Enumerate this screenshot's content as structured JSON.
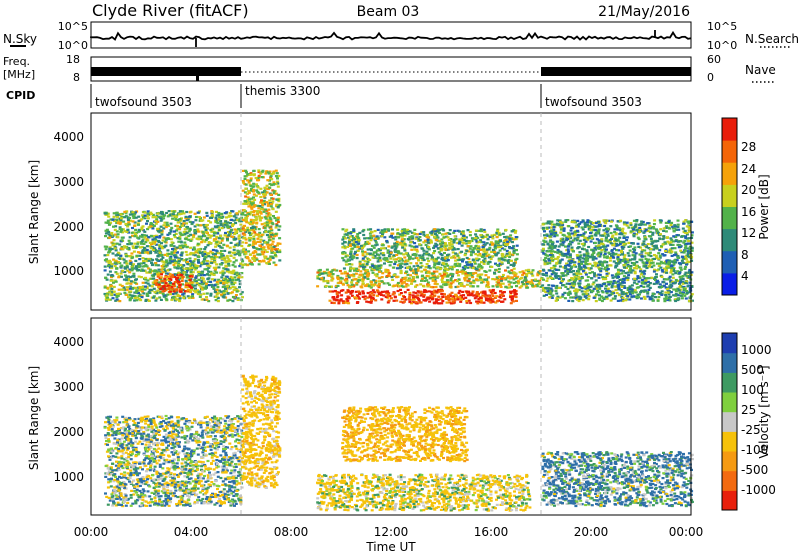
{
  "header": {
    "station": "Clyde River (fitACF)",
    "beam": "Beam 03",
    "date": "21/May/2016"
  },
  "strips": {
    "nsky_label": "N.Sky",
    "nsearch_label": "N.Search",
    "nsky_ticks": [
      "10^5",
      "10^0"
    ],
    "nsearch_ticks": [
      "10^5",
      "10^0"
    ],
    "freq_label_1": "Freq.",
    "freq_label_2": "[MHz]",
    "freq_ticks": [
      "18",
      "8"
    ],
    "nave_label": "Nave",
    "nave_ticks": [
      "60",
      "0"
    ],
    "cpid_label": "CPID",
    "cpid_modes": [
      {
        "name": "twofsound 3503",
        "start_h": 0,
        "end_h": 6
      },
      {
        "name": "themis 3300",
        "start_h": 6,
        "end_h": 18
      },
      {
        "name": "twofsound 3503",
        "start_h": 18,
        "end_h": 24
      }
    ]
  },
  "panels": {
    "ylabel": "Slant Range [km]",
    "xlabel": "Time UT",
    "yticks": [
      "1000",
      "2000",
      "3000",
      "4000"
    ],
    "xticks": [
      "00:00",
      "04:00",
      "08:00",
      "12:00",
      "16:00",
      "20:00",
      "00:00"
    ]
  },
  "colorbars": {
    "power": {
      "label": "Power [dB]",
      "ticks": [
        "4",
        "8",
        "12",
        "16",
        "20",
        "24",
        "28"
      ],
      "colors": [
        "#0a1ee6",
        "#1f5fb4",
        "#2e8a78",
        "#52b24a",
        "#c8d01e",
        "#f5a20a",
        "#f46508",
        "#e81d0a"
      ]
    },
    "velocity": {
      "label": "Velocity [m s⁻¹]",
      "ticks": [
        "1000",
        "500",
        "100",
        "25",
        "-25",
        "-100",
        "-500",
        "-1000"
      ],
      "colors": [
        "#1e3eb0",
        "#2e6fa8",
        "#3e9a62",
        "#7fcf3e",
        "#c8c8c8",
        "#f6c20a",
        "#f59a12",
        "#f36a10",
        "#e8200c"
      ]
    }
  },
  "chart_data": [
    {
      "type": "heatmap",
      "title": "Power",
      "xlabel": "Time UT",
      "ylabel": "Slant Range [km]",
      "xlim": [
        0,
        24
      ],
      "ylim": [
        180,
        4550
      ],
      "colorbar_label": "Power [dB]",
      "colorbar_range": [
        0,
        32
      ],
      "regions": [
        {
          "t0": 0.5,
          "t1": 6,
          "r0": 400,
          "r1": 2400,
          "value": 14
        },
        {
          "t0": 2.5,
          "t1": 4,
          "r0": 600,
          "r1": 1000,
          "value": 28
        },
        {
          "t0": 6,
          "t1": 7.5,
          "r0": 1200,
          "r1": 3300,
          "value": 18
        },
        {
          "t0": 9.5,
          "t1": 17,
          "r0": 350,
          "r1": 650,
          "value": 30
        },
        {
          "t0": 9,
          "t1": 18,
          "r0": 700,
          "r1": 1100,
          "value": 18
        },
        {
          "t0": 10,
          "t1": 17,
          "r0": 1100,
          "r1": 2000,
          "value": 14
        },
        {
          "t0": 18,
          "t1": 24,
          "r0": 400,
          "r1": 2200,
          "value": 12
        }
      ]
    },
    {
      "type": "heatmap",
      "title": "Velocity",
      "xlabel": "Time UT",
      "ylabel": "Slant Range [km]",
      "xlim": [
        0,
        24
      ],
      "ylim": [
        180,
        4550
      ],
      "colorbar_label": "Velocity [m s⁻¹]",
      "colorbar_range": [
        -1000,
        1000
      ],
      "regions": [
        {
          "t0": 0.5,
          "t1": 6,
          "r0": 400,
          "r1": 2400,
          "value": 0
        },
        {
          "t0": 6,
          "t1": 7.5,
          "r0": 800,
          "r1": 3300,
          "value": -300
        },
        {
          "t0": 9,
          "t1": 17.5,
          "r0": 300,
          "r1": 1100,
          "value": -150
        },
        {
          "t0": 10,
          "t1": 15,
          "r0": 1400,
          "r1": 2600,
          "value": -400
        },
        {
          "t0": 18,
          "t1": 24,
          "r0": 400,
          "r1": 1600,
          "value": 120
        }
      ]
    }
  ]
}
